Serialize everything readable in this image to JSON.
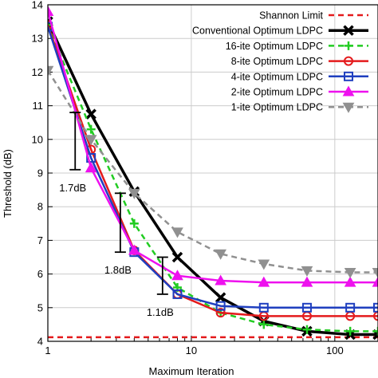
{
  "chart_data": {
    "type": "line",
    "xlabel": "Maximum Iteration",
    "ylabel": "Threshold (dB)",
    "xscale": "log",
    "xlim": [
      1,
      200
    ],
    "ylim": [
      4,
      14
    ],
    "xticks": [
      1,
      10,
      100
    ],
    "yticks": [
      4,
      5,
      6,
      7,
      8,
      9,
      10,
      11,
      12,
      13,
      14
    ],
    "grid": true,
    "legend_position": "top-right",
    "series": [
      {
        "name": "Shannon Limit",
        "color": "#e41a1c",
        "style": "dashed",
        "marker": "none",
        "x": [
          1,
          200
        ],
        "y": [
          4.12,
          4.12
        ]
      },
      {
        "name": "Conventional Optimum LDPC",
        "color": "#000000",
        "style": "solid",
        "marker": "x",
        "x": [
          1,
          2,
          4,
          8,
          16,
          32,
          64,
          128,
          200
        ],
        "y": [
          13.5,
          10.75,
          8.45,
          6.5,
          5.3,
          4.6,
          4.3,
          4.2,
          4.2
        ]
      },
      {
        "name": "16-ite Optimum LDPC",
        "color": "#22cc22",
        "style": "dashed",
        "marker": "plus",
        "x": [
          1,
          2,
          4,
          8,
          16,
          32,
          64,
          128,
          200
        ],
        "y": [
          13.4,
          10.3,
          7.5,
          5.6,
          4.85,
          4.5,
          4.35,
          4.3,
          4.3
        ]
      },
      {
        "name": "8-ite Optimum LDPC",
        "color": "#e41a1c",
        "style": "solid",
        "marker": "circle",
        "x": [
          1,
          2,
          4,
          8,
          16,
          32,
          64,
          128,
          200
        ],
        "y": [
          13.4,
          9.7,
          6.7,
          5.4,
          4.85,
          4.75,
          4.75,
          4.75,
          4.75
        ]
      },
      {
        "name": "4-ite Optimum LDPC",
        "color": "#1f3fbf",
        "style": "solid",
        "marker": "square",
        "x": [
          1,
          2,
          4,
          8,
          16,
          32,
          64,
          128,
          200
        ],
        "y": [
          13.35,
          9.45,
          6.65,
          5.4,
          5.05,
          5.0,
          5.0,
          5.0,
          5.0
        ]
      },
      {
        "name": "2-ite Optimum LDPC",
        "color": "#ee11ee",
        "style": "solid",
        "marker": "triangle",
        "x": [
          1,
          2,
          4,
          8,
          16,
          32,
          64,
          128,
          200
        ],
        "y": [
          13.8,
          9.15,
          6.7,
          5.95,
          5.8,
          5.75,
          5.75,
          5.75,
          5.75
        ]
      },
      {
        "name": "1-ite Optimum LDPC",
        "color": "#909090",
        "style": "dashed",
        "marker": "triangle-down",
        "x": [
          1,
          2,
          4,
          8,
          16,
          32,
          64,
          128,
          200
        ],
        "y": [
          12.05,
          10.0,
          8.4,
          7.25,
          6.6,
          6.3,
          6.1,
          6.05,
          6.05
        ]
      }
    ],
    "annotations": [
      {
        "text": "1.7dB",
        "x": 1.55,
        "y_low": 9.1,
        "y_high": 10.8
      },
      {
        "text": "1.8dB",
        "x": 3.2,
        "y_low": 6.65,
        "y_high": 8.4
      },
      {
        "text": "1.1dB",
        "x": 6.3,
        "y_low": 5.4,
        "y_high": 6.5
      }
    ]
  }
}
